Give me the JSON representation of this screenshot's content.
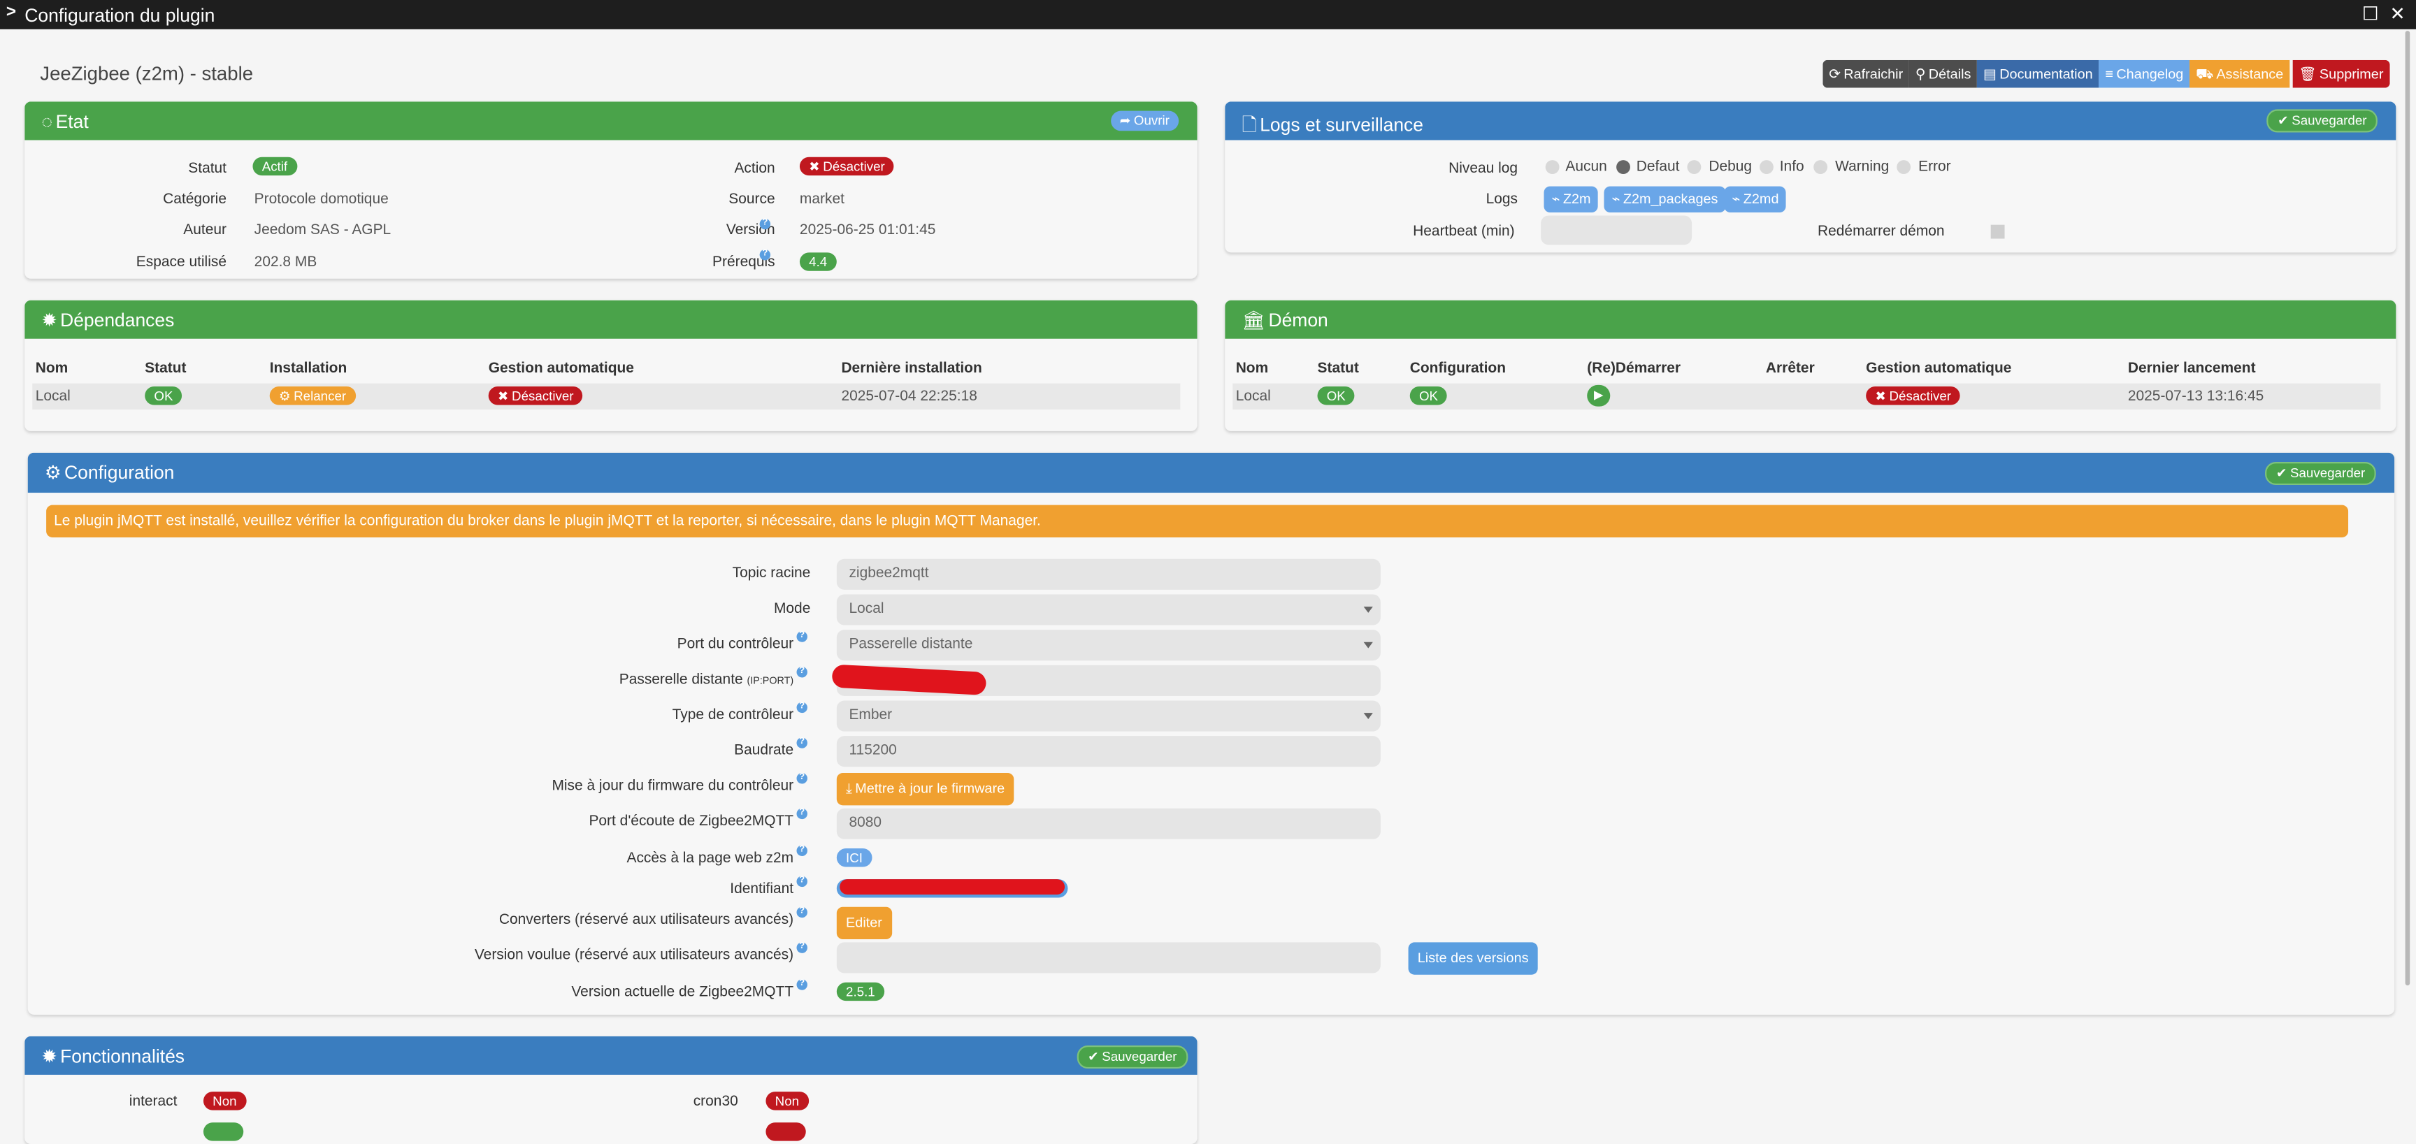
{
  "window": {
    "title": "Configuration du plugin"
  },
  "plugin": {
    "title": "JeeZigbee (z2m) - stable"
  },
  "toolbar": {
    "refresh": "Rafraichir",
    "details": "Détails",
    "documentation": "Documentation",
    "changelog": "Changelog",
    "assistance": "Assistance",
    "delete": "Supprimer"
  },
  "etat": {
    "title": "Etat",
    "open_btn": "Ouvrir",
    "statut_label": "Statut",
    "statut_value": "Actif",
    "categorie_label": "Catégorie",
    "categorie_value": "Protocole domotique",
    "auteur_label": "Auteur",
    "auteur_value": "Jeedom SAS - AGPL",
    "espace_label": "Espace utilisé",
    "espace_value": "202.8 MB",
    "action_label": "Action",
    "action_value": "Désactiver",
    "source_label": "Source",
    "source_value": "market",
    "version_label": "Version",
    "version_value": "2025-06-25 01:01:45",
    "prereq_label": "Prérequis",
    "prereq_value": "4.4"
  },
  "logs": {
    "title": "Logs et surveillance",
    "save_btn": "Sauvegarder",
    "niveau_label": "Niveau log",
    "levels": [
      "Aucun",
      "Defaut",
      "Debug",
      "Info",
      "Warning",
      "Error"
    ],
    "selected_level": "Defaut",
    "logs_label": "Logs",
    "log_buttons": [
      "Z2m",
      "Z2m_packages",
      "Z2md"
    ],
    "heartbeat_label": "Heartbeat (min)",
    "restart_label": "Redémarrer démon"
  },
  "deps": {
    "title": "Dépendances",
    "headers": [
      "Nom",
      "Statut",
      "Installation",
      "Gestion automatique",
      "Dernière installation"
    ],
    "row": {
      "nom": "Local",
      "statut": "OK",
      "installation": "Relancer",
      "gestion": "Désactiver",
      "derniere": "2025-07-04 22:25:18"
    }
  },
  "demon": {
    "title": "Démon",
    "headers": [
      "Nom",
      "Statut",
      "Configuration",
      "(Re)Démarrer",
      "Arrêter",
      "Gestion automatique",
      "Dernier lancement"
    ],
    "row": {
      "nom": "Local",
      "statut": "OK",
      "configuration": "OK",
      "gestion": "Désactiver",
      "dernier": "2025-07-13 13:16:45"
    }
  },
  "config": {
    "title": "Configuration",
    "save_btn": "Sauvegarder",
    "alert": "Le plugin jMQTT est installé, veuillez vérifier la configuration du broker dans le plugin jMQTT et la reporter, si nécessaire, dans le plugin MQTT Manager.",
    "topic_label": "Topic racine",
    "topic_value": "zigbee2mqtt",
    "mode_label": "Mode",
    "mode_value": "Local",
    "port_label": "Port du contrôleur",
    "port_value": "Passerelle distante",
    "passerelle_label": "Passerelle distante",
    "passerelle_sub": "(IP:PORT)",
    "type_label": "Type de contrôleur",
    "type_value": "Ember",
    "baudrate_label": "Baudrate",
    "baudrate_value": "115200",
    "firmware_label": "Mise à jour du firmware du contrôleur",
    "firmware_btn": "Mettre à jour le firmware",
    "ecoute_label": "Port d'écoute de Zigbee2MQTT",
    "ecoute_value": "8080",
    "web_label": "Accès à la page web z2m",
    "web_btn": "ICI",
    "ident_label": "Identifiant",
    "converters_label": "Converters (réservé aux utilisateurs avancés)",
    "converters_btn": "Editer",
    "voulue_label": "Version voulue (réservé aux utilisateurs avancés)",
    "versions_btn": "Liste des versions",
    "actuelle_label": "Version actuelle de Zigbee2MQTT",
    "actuelle_value": "2.5.1"
  },
  "fonct": {
    "title": "Fonctionnalités",
    "save_btn": "Sauvegarder",
    "interact_label": "interact",
    "interact_value": "Non",
    "cron30_label": "cron30",
    "cron30_value": "Non"
  }
}
